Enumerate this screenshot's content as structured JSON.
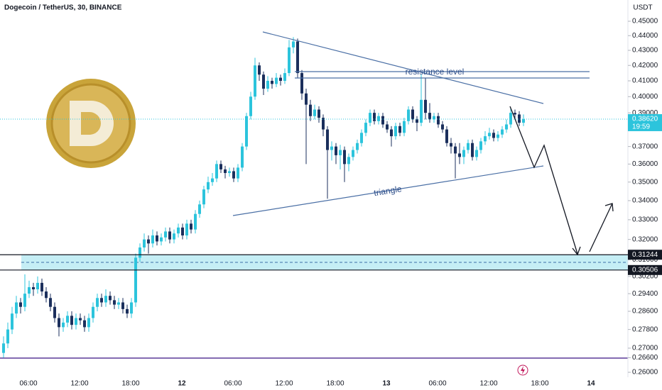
{
  "chart_data": {
    "type": "candlestick",
    "title": "Dogecoin / TetherUS, 30, BINANCE",
    "currency": "USDT",
    "log": true,
    "up_color": "#2cc4dc",
    "down_color": "#1b2f5c",
    "ylim": [
      0.258,
      0.4652
    ],
    "yticks": [
      {
        "value": 0.45,
        "label": "0.45000"
      },
      {
        "value": 0.44,
        "label": "0.44000"
      },
      {
        "value": 0.43,
        "label": "0.43000"
      },
      {
        "value": 0.42,
        "label": "0.42000"
      },
      {
        "value": 0.41,
        "label": "0.41000"
      },
      {
        "value": 0.4,
        "label": "0.40000"
      },
      {
        "value": 0.39,
        "label": "0.39000"
      },
      {
        "value": 0.37,
        "label": "0.37000"
      },
      {
        "value": 0.36,
        "label": "0.36000"
      },
      {
        "value": 0.35,
        "label": "0.35000"
      },
      {
        "value": 0.34,
        "label": "0.34000"
      },
      {
        "value": 0.33,
        "label": "0.33000"
      },
      {
        "value": 0.32,
        "label": "0.32000"
      },
      {
        "value": 0.31,
        "label": "0.31000"
      },
      {
        "value": 0.302,
        "label": "0.30200"
      },
      {
        "value": 0.294,
        "label": "0.29400"
      },
      {
        "value": 0.286,
        "label": "0.28600"
      },
      {
        "value": 0.278,
        "label": "0.27800"
      },
      {
        "value": 0.27,
        "label": "0.27000"
      },
      {
        "value": 0.266,
        "label": "0.26600"
      },
      {
        "value": 0.26,
        "label": "0.26000"
      }
    ],
    "xticks": [
      "06:00",
      "12:00",
      "18:00",
      "12",
      "06:00",
      "12:00",
      "18:00",
      "13",
      "06:00",
      "12:00",
      "18:00",
      "14"
    ],
    "levels": [
      0.31244,
      0.30506
    ],
    "last_price": {
      "value": 0.3862,
      "label": "0.38620"
    },
    "countdown": "19:59",
    "annotations": [
      "resistance level",
      "triangle"
    ],
    "candles": [
      [
        0.268,
        0.275,
        0.266,
        0.272
      ],
      [
        0.272,
        0.281,
        0.27,
        0.278
      ],
      [
        0.278,
        0.288,
        0.276,
        0.285
      ],
      [
        0.285,
        0.293,
        0.283,
        0.29
      ],
      [
        0.29,
        0.292,
        0.285,
        0.288
      ],
      [
        0.288,
        0.303,
        0.286,
        0.294
      ],
      [
        0.294,
        0.3,
        0.292,
        0.297
      ],
      [
        0.297,
        0.299,
        0.293,
        0.296
      ],
      [
        0.296,
        0.302,
        0.294,
        0.299
      ],
      [
        0.299,
        0.301,
        0.293,
        0.295
      ],
      [
        0.295,
        0.297,
        0.29,
        0.292
      ],
      [
        0.292,
        0.294,
        0.286,
        0.288
      ],
      [
        0.288,
        0.29,
        0.281,
        0.283
      ],
      [
        0.283,
        0.285,
        0.275,
        0.279
      ],
      [
        0.279,
        0.283,
        0.277,
        0.281
      ],
      [
        0.281,
        0.286,
        0.279,
        0.284
      ],
      [
        0.284,
        0.286,
        0.278,
        0.28
      ],
      [
        0.28,
        0.285,
        0.278,
        0.283
      ],
      [
        0.283,
        0.285,
        0.28,
        0.282
      ],
      [
        0.282,
        0.284,
        0.277,
        0.279
      ],
      [
        0.279,
        0.285,
        0.277,
        0.283
      ],
      [
        0.283,
        0.29,
        0.281,
        0.288
      ],
      [
        0.288,
        0.294,
        0.286,
        0.292
      ],
      [
        0.292,
        0.294,
        0.288,
        0.29
      ],
      [
        0.29,
        0.296,
        0.288,
        0.293
      ],
      [
        0.293,
        0.295,
        0.289,
        0.291
      ],
      [
        0.291,
        0.293,
        0.287,
        0.289
      ],
      [
        0.289,
        0.292,
        0.287,
        0.29
      ],
      [
        0.29,
        0.292,
        0.285,
        0.287
      ],
      [
        0.287,
        0.289,
        0.283,
        0.285
      ],
      [
        0.285,
        0.292,
        0.283,
        0.29
      ],
      [
        0.29,
        0.313,
        0.288,
        0.311
      ],
      [
        0.311,
        0.318,
        0.309,
        0.316
      ],
      [
        0.316,
        0.323,
        0.314,
        0.32
      ],
      [
        0.32,
        0.322,
        0.313,
        0.318
      ],
      [
        0.318,
        0.325,
        0.316,
        0.322
      ],
      [
        0.322,
        0.324,
        0.317,
        0.319
      ],
      [
        0.319,
        0.323,
        0.317,
        0.321
      ],
      [
        0.321,
        0.326,
        0.319,
        0.324
      ],
      [
        0.324,
        0.326,
        0.318,
        0.32
      ],
      [
        0.32,
        0.325,
        0.318,
        0.323
      ],
      [
        0.323,
        0.328,
        0.321,
        0.326
      ],
      [
        0.326,
        0.328,
        0.32,
        0.322
      ],
      [
        0.322,
        0.33,
        0.32,
        0.328
      ],
      [
        0.328,
        0.33,
        0.323,
        0.325
      ],
      [
        0.325,
        0.335,
        0.323,
        0.333
      ],
      [
        0.333,
        0.34,
        0.331,
        0.338
      ],
      [
        0.338,
        0.348,
        0.336,
        0.346
      ],
      [
        0.346,
        0.353,
        0.344,
        0.35
      ],
      [
        0.35,
        0.355,
        0.348,
        0.352
      ],
      [
        0.352,
        0.362,
        0.35,
        0.36
      ],
      [
        0.36,
        0.362,
        0.355,
        0.357
      ],
      [
        0.357,
        0.359,
        0.352,
        0.355
      ],
      [
        0.355,
        0.358,
        0.353,
        0.356
      ],
      [
        0.356,
        0.358,
        0.35,
        0.352
      ],
      [
        0.352,
        0.36,
        0.35,
        0.358
      ],
      [
        0.358,
        0.372,
        0.356,
        0.37
      ],
      [
        0.37,
        0.39,
        0.368,
        0.388
      ],
      [
        0.388,
        0.403,
        0.386,
        0.4
      ],
      [
        0.4,
        0.425,
        0.398,
        0.42
      ],
      [
        0.42,
        0.422,
        0.41,
        0.414
      ],
      [
        0.414,
        0.416,
        0.401,
        0.405
      ],
      [
        0.405,
        0.413,
        0.403,
        0.41
      ],
      [
        0.41,
        0.412,
        0.405,
        0.408
      ],
      [
        0.408,
        0.415,
        0.406,
        0.412
      ],
      [
        0.412,
        0.414,
        0.407,
        0.41
      ],
      [
        0.41,
        0.418,
        0.408,
        0.415
      ],
      [
        0.415,
        0.437,
        0.413,
        0.432
      ],
      [
        0.432,
        0.439,
        0.428,
        0.436
      ],
      [
        0.436,
        0.438,
        0.412,
        0.415
      ],
      [
        0.415,
        0.417,
        0.398,
        0.402
      ],
      [
        0.402,
        0.405,
        0.36,
        0.395
      ],
      [
        0.395,
        0.398,
        0.385,
        0.388
      ],
      [
        0.388,
        0.395,
        0.386,
        0.392
      ],
      [
        0.392,
        0.394,
        0.384,
        0.387
      ],
      [
        0.387,
        0.389,
        0.376,
        0.38
      ],
      [
        0.38,
        0.382,
        0.341,
        0.368
      ],
      [
        0.368,
        0.373,
        0.362,
        0.37
      ],
      [
        0.37,
        0.372,
        0.36,
        0.365
      ],
      [
        0.365,
        0.371,
        0.357,
        0.368
      ],
      [
        0.368,
        0.37,
        0.35,
        0.36
      ],
      [
        0.36,
        0.366,
        0.356,
        0.364
      ],
      [
        0.364,
        0.37,
        0.362,
        0.368
      ],
      [
        0.368,
        0.374,
        0.366,
        0.372
      ],
      [
        0.372,
        0.38,
        0.37,
        0.378
      ],
      [
        0.378,
        0.386,
        0.376,
        0.384
      ],
      [
        0.384,
        0.392,
        0.382,
        0.39
      ],
      [
        0.39,
        0.392,
        0.383,
        0.385
      ],
      [
        0.385,
        0.39,
        0.383,
        0.388
      ],
      [
        0.388,
        0.39,
        0.381,
        0.383
      ],
      [
        0.383,
        0.385,
        0.378,
        0.38
      ],
      [
        0.38,
        0.382,
        0.37,
        0.376
      ],
      [
        0.376,
        0.384,
        0.374,
        0.382
      ],
      [
        0.382,
        0.384,
        0.376,
        0.378
      ],
      [
        0.378,
        0.387,
        0.376,
        0.385
      ],
      [
        0.385,
        0.394,
        0.383,
        0.392
      ],
      [
        0.392,
        0.394,
        0.384,
        0.386
      ],
      [
        0.386,
        0.388,
        0.379,
        0.384
      ],
      [
        0.384,
        0.414,
        0.382,
        0.398
      ],
      [
        0.398,
        0.412,
        0.386,
        0.39
      ],
      [
        0.39,
        0.396,
        0.384,
        0.386
      ],
      [
        0.386,
        0.39,
        0.384,
        0.388
      ],
      [
        0.388,
        0.39,
        0.381,
        0.383
      ],
      [
        0.383,
        0.385,
        0.378,
        0.38
      ],
      [
        0.38,
        0.382,
        0.37,
        0.372
      ],
      [
        0.372,
        0.375,
        0.366,
        0.37
      ],
      [
        0.37,
        0.372,
        0.352,
        0.366
      ],
      [
        0.366,
        0.372,
        0.36,
        0.364
      ],
      [
        0.364,
        0.37,
        0.36,
        0.368
      ],
      [
        0.368,
        0.374,
        0.366,
        0.372
      ],
      [
        0.372,
        0.374,
        0.362,
        0.364
      ],
      [
        0.364,
        0.37,
        0.362,
        0.368
      ],
      [
        0.368,
        0.375,
        0.366,
        0.373
      ],
      [
        0.373,
        0.379,
        0.371,
        0.376
      ],
      [
        0.376,
        0.381,
        0.374,
        0.378
      ],
      [
        0.378,
        0.38,
        0.373,
        0.375
      ],
      [
        0.375,
        0.379,
        0.373,
        0.377
      ],
      [
        0.377,
        0.382,
        0.375,
        0.38
      ],
      [
        0.38,
        0.386,
        0.378,
        0.383
      ],
      [
        0.383,
        0.393,
        0.381,
        0.39
      ],
      [
        0.39,
        0.392,
        0.386,
        0.389
      ],
      [
        0.389,
        0.391,
        0.382,
        0.384
      ],
      [
        0.384,
        0.389,
        0.382,
        0.3862
      ]
    ]
  }
}
